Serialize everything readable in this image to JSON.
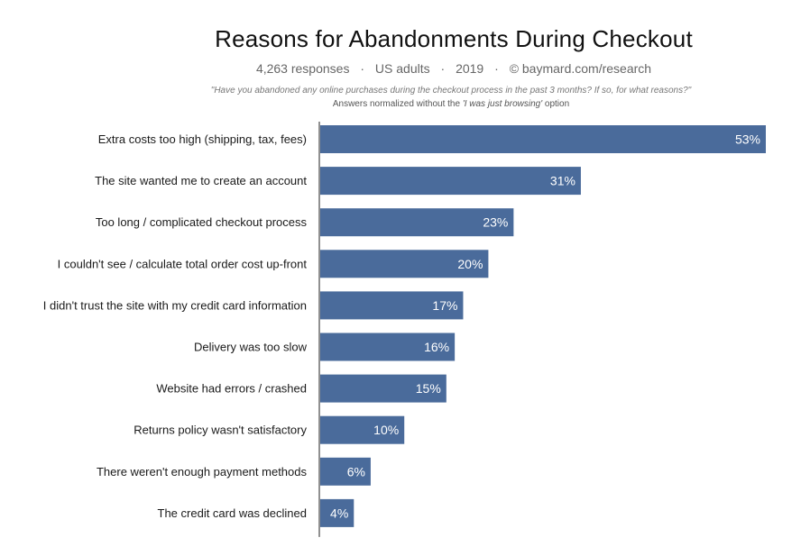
{
  "header": {
    "title": "Reasons for Abandonments During Checkout",
    "meta": {
      "responses": "4,263 responses",
      "audience": "US adults",
      "year": "2019",
      "source": "© baymard.com/research",
      "separator": "·"
    },
    "question": "\"Have you abandoned any online purchases during the checkout process in the past 3 months? If so, for what reasons?\"",
    "note": {
      "prefix": "Answers normalized without the",
      "quoted": "'I was just browsing'",
      "suffix": "option"
    }
  },
  "colors": {
    "bar": "#4a6b9b",
    "axis": "#222222",
    "value_text": "#ffffff"
  },
  "chart_data": {
    "type": "bar",
    "orientation": "horizontal",
    "categories": [
      "Extra costs too high (shipping, tax, fees)",
      "The site wanted me to create an account",
      "Too long / complicated checkout process",
      "I couldn't see / calculate total order cost up-front",
      "I didn't trust the site with my credit card information",
      "Delivery was too slow",
      "Website had errors / crashed",
      "Returns policy wasn't satisfactory",
      "There weren't enough payment methods",
      "The credit card was declined"
    ],
    "values": [
      53,
      31,
      23,
      20,
      17,
      16,
      15,
      10,
      6,
      4
    ],
    "value_labels": [
      "53%",
      "31%",
      "23%",
      "20%",
      "17%",
      "16%",
      "15%",
      "10%",
      "6%",
      "4%"
    ],
    "value_unit": "%",
    "xlim": [
      0,
      53
    ],
    "grid": false,
    "legend": "none"
  }
}
